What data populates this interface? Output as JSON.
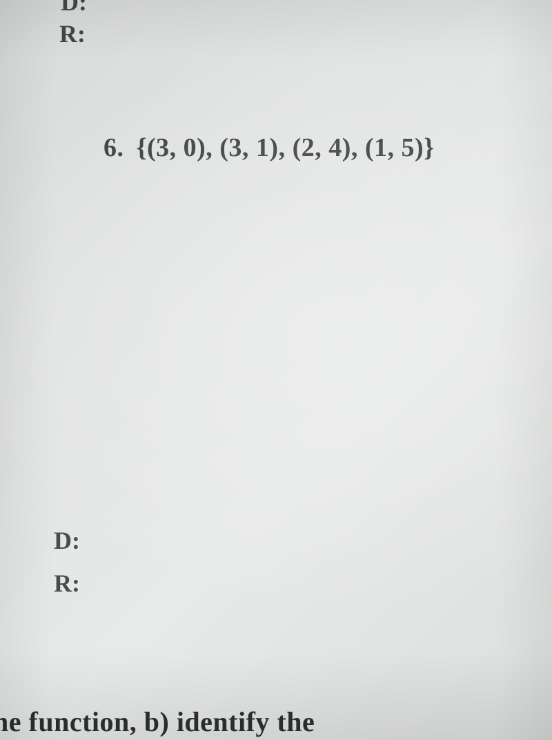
{
  "page": {
    "background_gradient": [
      "#d8dad9",
      "#e2e4e3",
      "#e8eae9",
      "#dcdedd"
    ],
    "text_color": "#3a3c3b",
    "font_family": "Times New Roman"
  },
  "top_labels": {
    "d_partial": "D:",
    "r": "R:",
    "fontsize": 36,
    "fontweight": "bold",
    "color": "#454746"
  },
  "question6": {
    "number": "6.",
    "set_text": "{(3, 0), (3, 1), (2,  4), (1, 5)}",
    "fontsize": 38,
    "fontweight": "bold",
    "color": "#3f4140",
    "points": [
      {
        "x": 3,
        "y": 0
      },
      {
        "x": 3,
        "y": 1
      },
      {
        "x": 2,
        "y": 4
      },
      {
        "x": 1,
        "y": 5
      }
    ]
  },
  "bottom_labels": {
    "d": "D:",
    "r": "R:",
    "fontsize": 36,
    "fontweight": "bold",
    "color": "#4a4c4b"
  },
  "footer": {
    "text": "he function, b) identify the",
    "fontsize": 40,
    "fontweight": "bold",
    "color": "#2e302f"
  }
}
